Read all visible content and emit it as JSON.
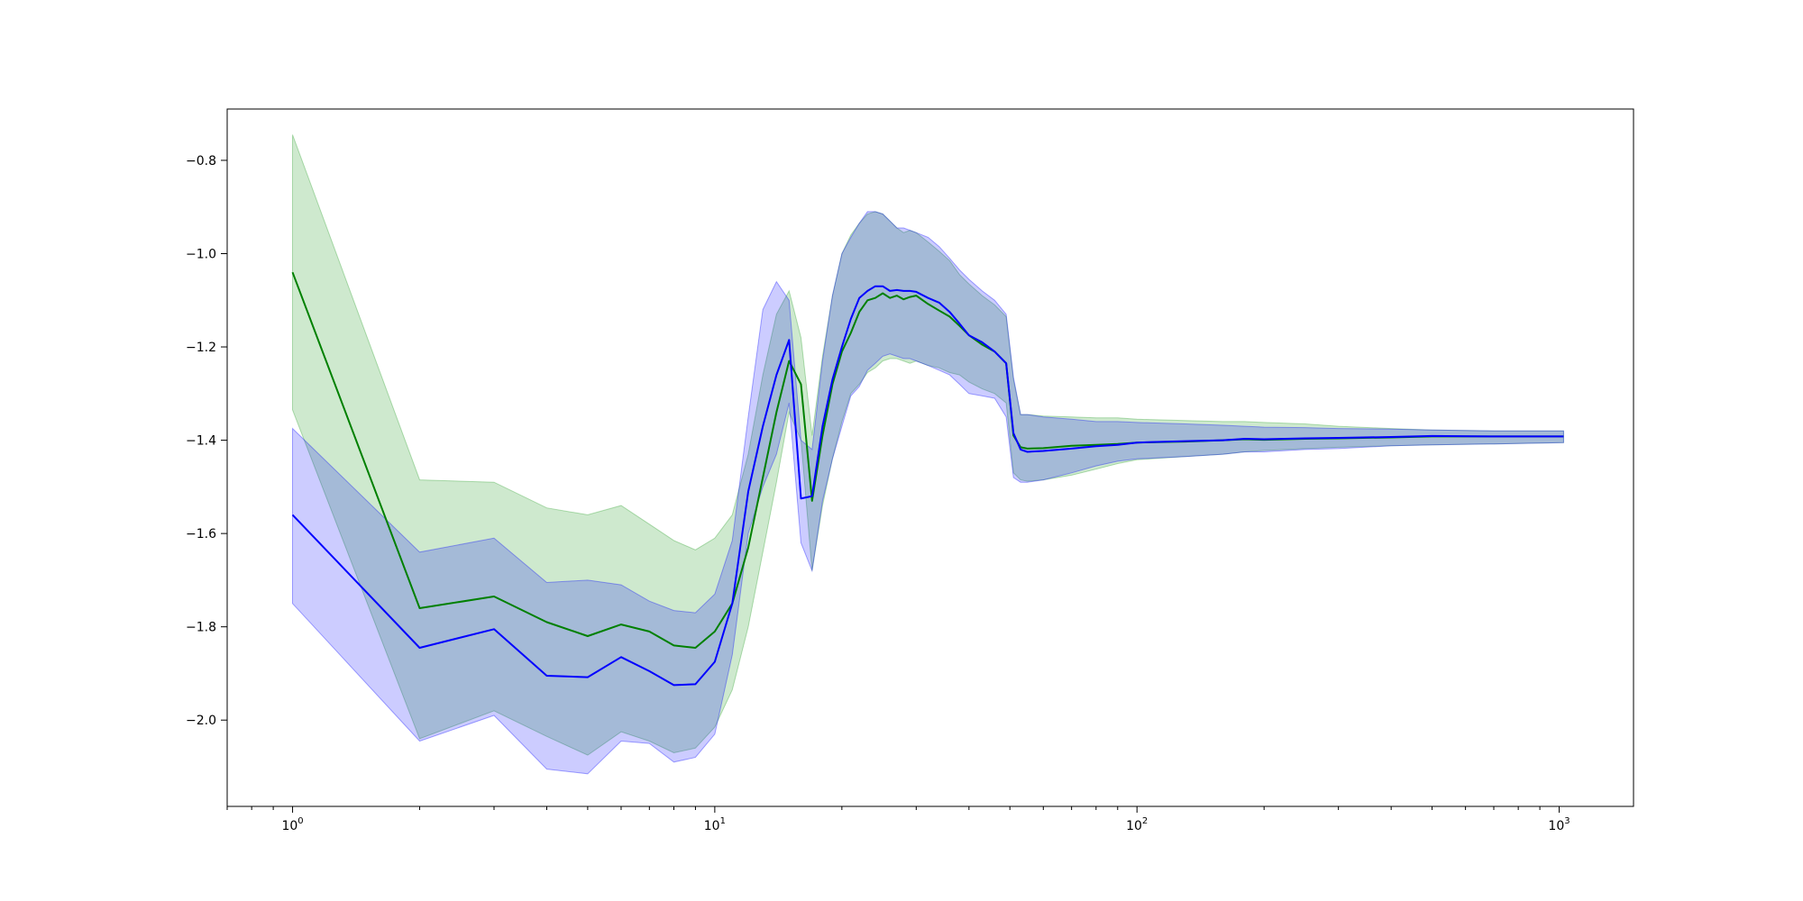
{
  "chart_data": {
    "type": "line",
    "xscale": "log",
    "xlim": [
      0.7,
      1500
    ],
    "ylim": [
      -2.185,
      -0.69
    ],
    "grid": false,
    "legend": "none",
    "title": "",
    "xlabel": "",
    "ylabel": "",
    "x_ticks": [
      {
        "base": "10",
        "exp": "0",
        "value": 1
      },
      {
        "base": "10",
        "exp": "1",
        "value": 10
      },
      {
        "base": "10",
        "exp": "2",
        "value": 100
      },
      {
        "base": "10",
        "exp": "3",
        "value": 1000
      }
    ],
    "y_ticks": [
      {
        "label": "−0.8",
        "value": -0.8
      },
      {
        "label": "−1.0",
        "value": -1.0
      },
      {
        "label": "−1.2",
        "value": -1.2
      },
      {
        "label": "−1.4",
        "value": -1.4
      },
      {
        "label": "−1.6",
        "value": -1.6
      },
      {
        "label": "−1.8",
        "value": -1.8
      },
      {
        "label": "−2.0",
        "value": -2.0
      }
    ],
    "series": [
      {
        "color": "#008000",
        "band_color": "#2ca02c",
        "band_opacity": 0.23,
        "x": [
          1,
          2,
          3,
          4,
          5,
          6,
          7,
          8,
          9,
          10,
          11,
          12,
          13,
          14,
          15,
          16,
          17,
          18,
          19,
          20,
          21,
          22,
          23,
          24,
          25,
          26,
          27,
          28,
          29,
          30,
          32,
          34,
          36,
          38,
          40,
          43,
          46,
          49,
          51,
          53,
          55,
          60,
          70,
          80,
          90,
          100,
          130,
          160,
          180,
          200,
          250,
          300,
          400,
          500,
          700,
          1024
        ],
        "y": [
          -1.04,
          -1.76,
          -1.735,
          -1.79,
          -1.82,
          -1.795,
          -1.81,
          -1.84,
          -1.845,
          -1.81,
          -1.75,
          -1.63,
          -1.48,
          -1.34,
          -1.23,
          -1.28,
          -1.53,
          -1.39,
          -1.28,
          -1.21,
          -1.17,
          -1.125,
          -1.1,
          -1.095,
          -1.085,
          -1.095,
          -1.09,
          -1.098,
          -1.093,
          -1.09,
          -1.108,
          -1.122,
          -1.135,
          -1.155,
          -1.175,
          -1.195,
          -1.21,
          -1.235,
          -1.39,
          -1.415,
          -1.418,
          -1.417,
          -1.412,
          -1.41,
          -1.408,
          -1.405,
          -1.403,
          -1.4,
          -1.398,
          -1.399,
          -1.397,
          -1.396,
          -1.394,
          -1.392,
          -1.392,
          -1.392
        ],
        "upper": [
          -0.745,
          -1.485,
          -1.49,
          -1.545,
          -1.56,
          -1.54,
          -1.58,
          -1.615,
          -1.635,
          -1.61,
          -1.56,
          -1.43,
          -1.26,
          -1.13,
          -1.08,
          -1.18,
          -1.39,
          -1.22,
          -1.09,
          -1.0,
          -0.96,
          -0.935,
          -0.915,
          -0.91,
          -0.915,
          -0.93,
          -0.945,
          -0.955,
          -0.95,
          -0.955,
          -0.975,
          -0.995,
          -1.015,
          -1.045,
          -1.065,
          -1.09,
          -1.11,
          -1.135,
          -1.27,
          -1.345,
          -1.345,
          -1.348,
          -1.35,
          -1.352,
          -1.352,
          -1.355,
          -1.358,
          -1.36,
          -1.36,
          -1.362,
          -1.365,
          -1.37,
          -1.375,
          -1.378,
          -1.38,
          -1.38
        ],
        "lower": [
          -1.335,
          -2.04,
          -1.98,
          -2.035,
          -2.075,
          -2.025,
          -2.045,
          -2.07,
          -2.06,
          -2.015,
          -1.935,
          -1.8,
          -1.64,
          -1.49,
          -1.34,
          -1.4,
          -1.68,
          -1.54,
          -1.44,
          -1.36,
          -1.3,
          -1.28,
          -1.255,
          -1.245,
          -1.23,
          -1.225,
          -1.225,
          -1.23,
          -1.235,
          -1.23,
          -1.24,
          -1.245,
          -1.255,
          -1.26,
          -1.275,
          -1.29,
          -1.3,
          -1.32,
          -1.47,
          -1.485,
          -1.488,
          -1.485,
          -1.475,
          -1.462,
          -1.45,
          -1.442,
          -1.435,
          -1.43,
          -1.425,
          -1.422,
          -1.418,
          -1.415,
          -1.412,
          -1.41,
          -1.408,
          -1.405
        ]
      },
      {
        "color": "#0000ff",
        "band_color": "#0000ff",
        "band_opacity": 0.2,
        "x": [
          1,
          2,
          3,
          4,
          5,
          6,
          7,
          8,
          9,
          10,
          11,
          12,
          13,
          14,
          15,
          16,
          17,
          18,
          19,
          20,
          21,
          22,
          23,
          24,
          25,
          26,
          27,
          28,
          29,
          30,
          32,
          34,
          36,
          38,
          40,
          43,
          46,
          49,
          51,
          53,
          55,
          60,
          70,
          80,
          90,
          100,
          130,
          160,
          180,
          200,
          250,
          300,
          400,
          500,
          700,
          1024
        ],
        "y": [
          -1.56,
          -1.845,
          -1.805,
          -1.905,
          -1.908,
          -1.865,
          -1.895,
          -1.925,
          -1.923,
          -1.875,
          -1.75,
          -1.51,
          -1.37,
          -1.26,
          -1.185,
          -1.525,
          -1.52,
          -1.37,
          -1.27,
          -1.2,
          -1.14,
          -1.095,
          -1.08,
          -1.07,
          -1.07,
          -1.08,
          -1.078,
          -1.08,
          -1.08,
          -1.082,
          -1.095,
          -1.105,
          -1.125,
          -1.15,
          -1.175,
          -1.19,
          -1.21,
          -1.235,
          -1.385,
          -1.42,
          -1.425,
          -1.423,
          -1.418,
          -1.413,
          -1.41,
          -1.405,
          -1.402,
          -1.4,
          -1.397,
          -1.398,
          -1.396,
          -1.395,
          -1.393,
          -1.391,
          -1.392,
          -1.392
        ],
        "upper": [
          -1.375,
          -1.64,
          -1.61,
          -1.705,
          -1.7,
          -1.71,
          -1.745,
          -1.765,
          -1.77,
          -1.73,
          -1.615,
          -1.35,
          -1.12,
          -1.06,
          -1.1,
          -1.4,
          -1.42,
          -1.23,
          -1.09,
          -1.0,
          -0.965,
          -0.935,
          -0.91,
          -0.91,
          -0.915,
          -0.93,
          -0.945,
          -0.945,
          -0.95,
          -0.955,
          -0.965,
          -0.985,
          -1.01,
          -1.035,
          -1.055,
          -1.08,
          -1.1,
          -1.13,
          -1.265,
          -1.345,
          -1.345,
          -1.35,
          -1.355,
          -1.36,
          -1.36,
          -1.362,
          -1.365,
          -1.368,
          -1.37,
          -1.372,
          -1.373,
          -1.375,
          -1.376,
          -1.378,
          -1.38,
          -1.38
        ],
        "lower": [
          -1.75,
          -2.045,
          -1.99,
          -2.105,
          -2.115,
          -2.045,
          -2.05,
          -2.09,
          -2.08,
          -2.03,
          -1.86,
          -1.6,
          -1.5,
          -1.43,
          -1.32,
          -1.62,
          -1.68,
          -1.53,
          -1.44,
          -1.37,
          -1.305,
          -1.285,
          -1.25,
          -1.235,
          -1.22,
          -1.215,
          -1.22,
          -1.225,
          -1.225,
          -1.23,
          -1.24,
          -1.25,
          -1.26,
          -1.28,
          -1.3,
          -1.305,
          -1.31,
          -1.35,
          -1.48,
          -1.49,
          -1.49,
          -1.485,
          -1.47,
          -1.455,
          -1.445,
          -1.44,
          -1.435,
          -1.43,
          -1.425,
          -1.425,
          -1.42,
          -1.418,
          -1.412,
          -1.41,
          -1.408,
          -1.405
        ]
      }
    ]
  }
}
